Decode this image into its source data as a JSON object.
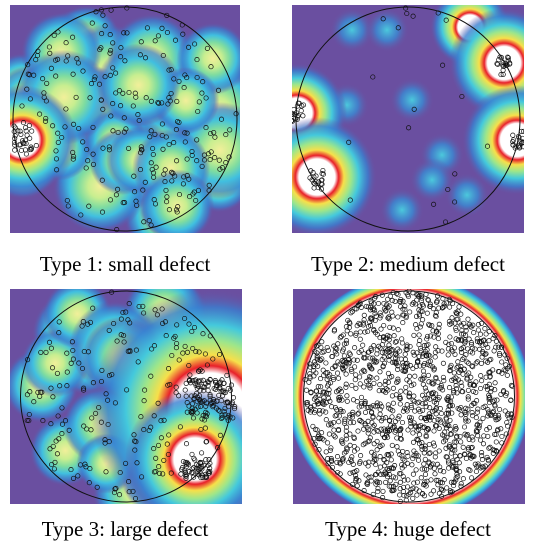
{
  "panels": [
    {
      "caption": "Type 1: small defect"
    },
    {
      "caption": "Type 2: medium defect"
    },
    {
      "caption": "Type 3: large defect"
    },
    {
      "caption": "Type 4: huge defect"
    }
  ]
}
